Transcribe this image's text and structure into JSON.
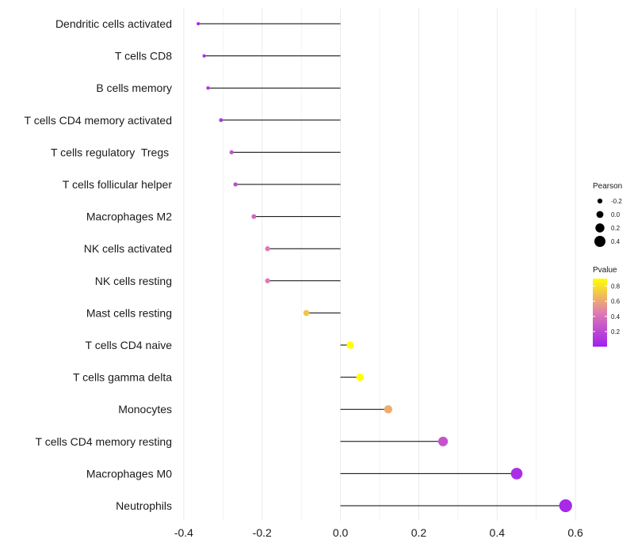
{
  "chart_data": {
    "type": "lollipop",
    "title": "",
    "xlabel": "",
    "ylabel": "",
    "xlim": [
      -0.42,
      0.62
    ],
    "x_ticks": [
      -0.4,
      -0.2,
      0.0,
      0.2,
      0.4,
      0.6
    ],
    "x_tick_labels": [
      "-0.4",
      "-0.2",
      "0.0",
      "0.2",
      "0.4",
      "0.6"
    ],
    "grid": true,
    "legend_position": "right",
    "categories": [
      "Dendritic cells activated",
      "T cells CD8",
      "B cells memory",
      "T cells CD4 memory activated",
      "T cells regulatory  Tregs ",
      "T cells follicular helper",
      "Macrophages M2",
      "NK cells activated",
      "NK cells resting",
      "Mast cells resting",
      "T cells CD4 naive",
      "T cells gamma delta",
      "Monocytes",
      "T cells CD4 memory resting",
      "Macrophages M0",
      "Neutrophils"
    ],
    "values": [
      -0.363,
      -0.348,
      -0.338,
      -0.305,
      -0.278,
      -0.268,
      -0.221,
      -0.186,
      -0.186,
      -0.087,
      0.025,
      0.05,
      0.122,
      0.262,
      0.45,
      0.575
    ],
    "pvalues": [
      0.05,
      0.08,
      0.1,
      0.1,
      0.25,
      0.22,
      0.35,
      0.45,
      0.45,
      0.7,
      0.97,
      0.92,
      0.62,
      0.25,
      0.08,
      0.05
    ],
    "size_legend": {
      "title": "Pearson",
      "values": [
        -0.2,
        0.0,
        0.2,
        0.4
      ],
      "labels": [
        "-0.2",
        "0.0",
        "0.2",
        "0.4"
      ]
    },
    "color_legend": {
      "title": "Pvalue",
      "range": [
        0.0,
        0.9
      ],
      "ticks": [
        0.2,
        0.4,
        0.6,
        0.8
      ],
      "tick_labels": [
        "0.2",
        "0.4",
        "0.6",
        "0.8"
      ],
      "low_color": "#a020f0",
      "mid_color": "#e07bb0",
      "high_color": "#ffff00"
    },
    "stem_color": "#000000",
    "grid_color": "#ebebeb"
  }
}
